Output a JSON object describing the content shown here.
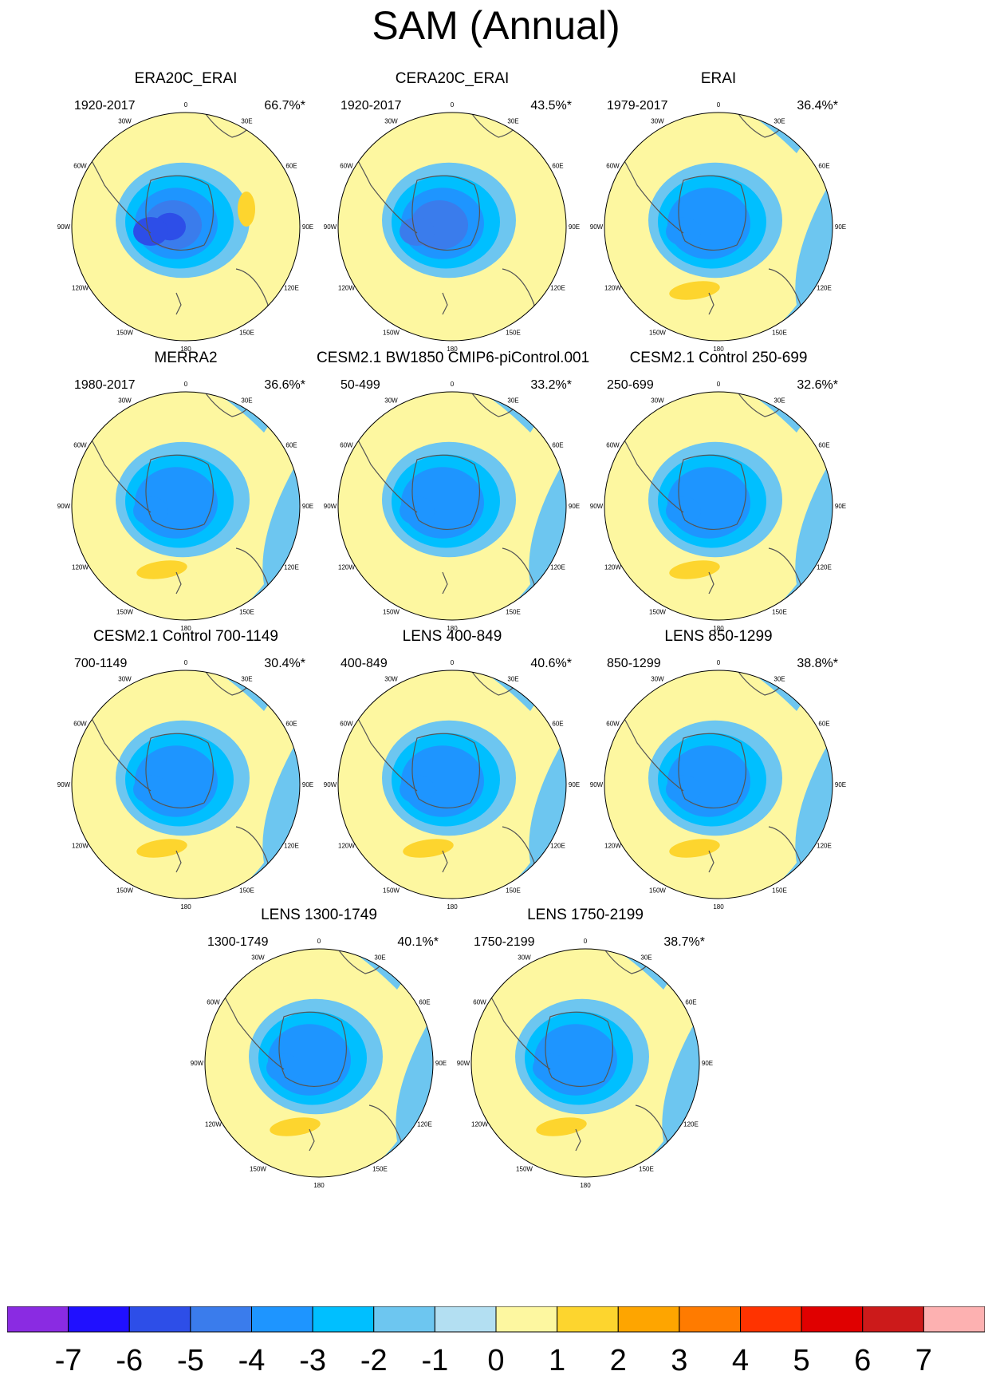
{
  "title": "SAM (Annual)",
  "chart_data": {
    "type": "contour-map-panels",
    "projection": "south polar stereographic",
    "lon_labels": [
      "0",
      "30E",
      "60E",
      "90E",
      "120E",
      "150E",
      "180",
      "150W",
      "120W",
      "90W",
      "60W",
      "30W"
    ],
    "panels": [
      {
        "title": "ERA20C_ERAI",
        "period": "1920-2017",
        "variance": "66.7%*",
        "min_level": -5,
        "pos_blob": "east",
        "blue_edge": false
      },
      {
        "title": "CERA20C_ERAI",
        "period": "1920-2017",
        "variance": "43.5%*",
        "min_level": -4,
        "pos_blob": "none",
        "blue_edge": false
      },
      {
        "title": "ERAI",
        "period": "1979-2017",
        "variance": "36.4%*",
        "min_level": -3,
        "pos_blob": "south",
        "blue_edge": true
      },
      {
        "title": "MERRA2",
        "period": "1980-2017",
        "variance": "36.6%*",
        "min_level": -3,
        "pos_blob": "south",
        "blue_edge": true
      },
      {
        "title": "CESM2.1 BW1850 CMIP6-piControl.001",
        "period": "50-499",
        "variance": "33.2%*",
        "min_level": -3,
        "pos_blob": "none",
        "blue_edge": true
      },
      {
        "title": "CESM2.1 Control 250-699",
        "period": "250-699",
        "variance": "32.6%*",
        "min_level": -3,
        "pos_blob": "south",
        "blue_edge": true
      },
      {
        "title": "CESM2.1 Control 700-1149",
        "period": "700-1149",
        "variance": "30.4%*",
        "min_level": -3,
        "pos_blob": "south",
        "blue_edge": true
      },
      {
        "title": "LENS 400-849",
        "period": "400-849",
        "variance": "40.6%*",
        "min_level": -3,
        "pos_blob": "south",
        "blue_edge": true
      },
      {
        "title": "LENS 850-1299",
        "period": "850-1299",
        "variance": "38.8%*",
        "min_level": -3,
        "pos_blob": "south",
        "blue_edge": true
      },
      {
        "title": "LENS 1300-1749",
        "period": "1300-1749",
        "variance": "40.1%*",
        "min_level": -3,
        "pos_blob": "south",
        "blue_edge": true
      },
      {
        "title": "LENS 1750-2199",
        "period": "1750-2199",
        "variance": "38.7%*",
        "min_level": -3,
        "pos_blob": "south",
        "blue_edge": true
      }
    ],
    "colorbar": {
      "labels": [
        "-7",
        "-6",
        "-5",
        "-4",
        "-3",
        "-2",
        "-1",
        "0",
        "1",
        "2",
        "3",
        "4",
        "5",
        "6",
        "7"
      ],
      "colors": [
        "#8a2be2",
        "#2010ff",
        "#2d4ee8",
        "#3a7cec",
        "#1e95ff",
        "#00bfff",
        "#6dc6f0",
        "#b3dff2",
        "#fdf7a0",
        "#fdd52e",
        "#fea500",
        "#ff7b00",
        "#ff3300",
        "#e00000",
        "#cc1a1a",
        "#fdb1b1"
      ]
    }
  }
}
